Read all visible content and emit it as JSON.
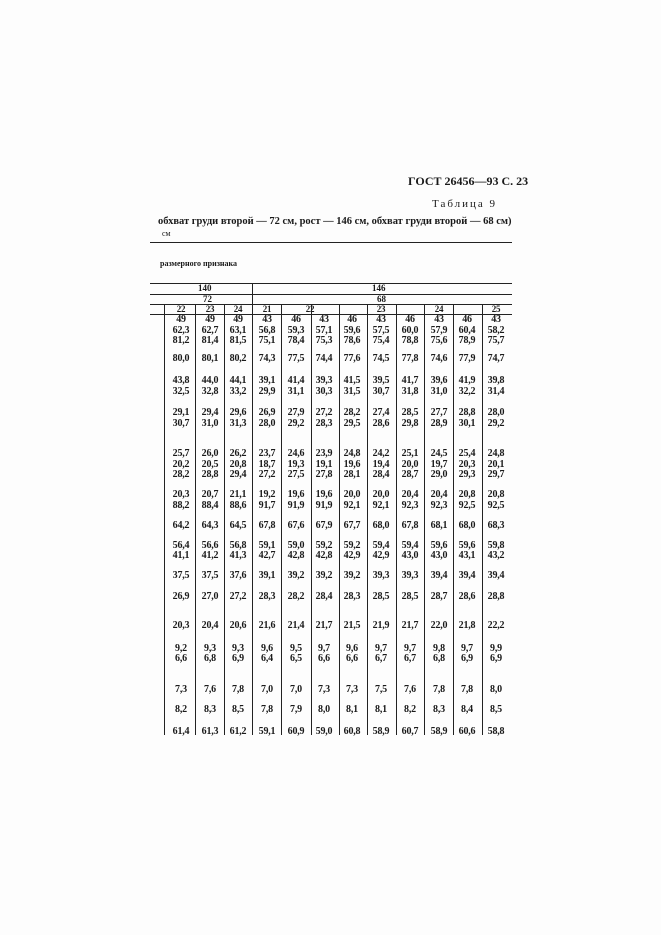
{
  "header": {
    "standard": "ГОСТ 26456—93 С. 23",
    "table_label": "Таблица 9",
    "caption": "обхват груди второй — 72 см, рост — 146 см, обхват груди второй — 68 см)",
    "unit": "см",
    "row_header": "размерного признака"
  },
  "table": {
    "height_groups": [
      "140",
      "146"
    ],
    "chest_groups": [
      "72",
      "68"
    ],
    "hip_groups": [
      "22",
      "23",
      "24",
      "21",
      "22",
      "23",
      "24",
      "25"
    ],
    "rows": [
      [
        "49",
        "49",
        "49",
        "43",
        "46",
        "43",
        "46",
        "43",
        "46",
        "43",
        "46",
        "43"
      ],
      [
        "62,3",
        "62,7",
        "63,1",
        "56,8",
        "59,3",
        "57,1",
        "59,6",
        "57,5",
        "60,0",
        "57,9",
        "60,4",
        "58,2"
      ],
      [
        "81,2",
        "81,4",
        "81,5",
        "75,1",
        "78,4",
        "75,3",
        "78,6",
        "75,4",
        "78,8",
        "75,6",
        "78,9",
        "75,7"
      ],
      [
        "80,0",
        "80,1",
        "80,2",
        "74,3",
        "77,5",
        "74,4",
        "77,6",
        "74,5",
        "77,8",
        "74,6",
        "77,9",
        "74,7"
      ],
      [
        "43,8",
        "44,0",
        "44,1",
        "39,1",
        "41,4",
        "39,3",
        "41,5",
        "39,5",
        "41,7",
        "39,6",
        "41,9",
        "39,8"
      ],
      [
        "32,5",
        "32,8",
        "33,2",
        "29,9",
        "31,1",
        "30,3",
        "31,5",
        "30,7",
        "31,8",
        "31,0",
        "32,2",
        "31,4"
      ],
      [
        "29,1",
        "29,4",
        "29,6",
        "26,9",
        "27,9",
        "27,2",
        "28,2",
        "27,4",
        "28,5",
        "27,7",
        "28,8",
        "28,0"
      ],
      [
        "30,7",
        "31,0",
        "31,3",
        "28,0",
        "29,2",
        "28,3",
        "29,5",
        "28,6",
        "29,8",
        "28,9",
        "30,1",
        "29,2"
      ],
      [
        "25,7",
        "26,0",
        "26,2",
        "23,7",
        "24,6",
        "23,9",
        "24,8",
        "24,2",
        "25,1",
        "24,5",
        "25,4",
        "24,8"
      ],
      [
        "20,2",
        "20,5",
        "20,8",
        "18,7",
        "19,3",
        "19,1",
        "19,6",
        "19,4",
        "20,0",
        "19,7",
        "20,3",
        "20,1"
      ],
      [
        "28,2",
        "28,8",
        "29,4",
        "27,2",
        "27,5",
        "27,8",
        "28,1",
        "28,4",
        "28,7",
        "29,0",
        "29,3",
        "29,7"
      ],
      [
        "20,3",
        "20,7",
        "21,1",
        "19,2",
        "19,6",
        "19,6",
        "20,0",
        "20,0",
        "20,4",
        "20,4",
        "20,8",
        "20,8"
      ],
      [
        "88,2",
        "88,4",
        "88,6",
        "91,7",
        "91,9",
        "91,9",
        "92,1",
        "92,1",
        "92,3",
        "92,3",
        "92,5",
        "92,5"
      ],
      [
        "64,2",
        "64,3",
        "64,5",
        "67,8",
        "67,6",
        "67,9",
        "67,7",
        "68,0",
        "67,8",
        "68,1",
        "68,0",
        "68,3"
      ],
      [
        "56,4",
        "56,6",
        "56,8",
        "59,1",
        "59,0",
        "59,2",
        "59,2",
        "59,4",
        "59,4",
        "59,6",
        "59,6",
        "59,8"
      ],
      [
        "41,1",
        "41,2",
        "41,3",
        "42,7",
        "42,8",
        "42,8",
        "42,9",
        "42,9",
        "43,0",
        "43,0",
        "43,1",
        "43,2"
      ],
      [
        "37,5",
        "37,5",
        "37,6",
        "39,1",
        "39,2",
        "39,2",
        "39,2",
        "39,3",
        "39,3",
        "39,4",
        "39,4",
        "39,4"
      ],
      [
        "26,9",
        "27,0",
        "27,2",
        "28,3",
        "28,2",
        "28,4",
        "28,3",
        "28,5",
        "28,5",
        "28,7",
        "28,6",
        "28,8"
      ],
      [
        "20,3",
        "20,4",
        "20,6",
        "21,6",
        "21,4",
        "21,7",
        "21,5",
        "21,9",
        "21,7",
        "22,0",
        "21,8",
        "22,2"
      ],
      [
        "9,2",
        "9,3",
        "9,3",
        "9,6",
        "9,5",
        "9,7",
        "9,6",
        "9,7",
        "9,7",
        "9,8",
        "9,7",
        "9,9"
      ],
      [
        "6,6",
        "6,8",
        "6,9",
        "6,4",
        "6,5",
        "6,6",
        "6,6",
        "6,7",
        "6,7",
        "6,8",
        "6,9",
        "6,9"
      ],
      [
        "7,3",
        "7,6",
        "7,8",
        "7,0",
        "7,0",
        "7,3",
        "7,3",
        "7,5",
        "7,6",
        "7,8",
        "7,8",
        "8,0"
      ],
      [
        "8,2",
        "8,3",
        "8,5",
        "7,8",
        "7,9",
        "8,0",
        "8,1",
        "8,1",
        "8,2",
        "8,3",
        "8,4",
        "8,5"
      ],
      [
        "61,4",
        "61,3",
        "61,2",
        "59,1",
        "60,9",
        "59,0",
        "60,8",
        "58,9",
        "60,7",
        "58,9",
        "60,6",
        "58,8"
      ]
    ]
  }
}
